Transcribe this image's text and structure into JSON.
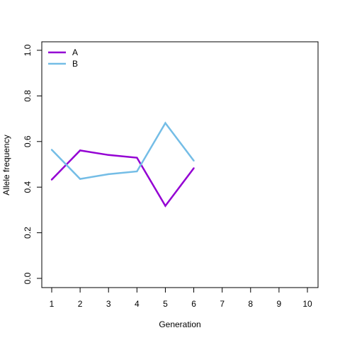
{
  "chart_data": {
    "type": "line",
    "title": "",
    "xlabel": "Generation",
    "ylabel": "Allele frequency",
    "x": [
      1,
      2,
      3,
      4,
      5,
      6
    ],
    "xticks": [
      1,
      2,
      3,
      4,
      5,
      6,
      7,
      8,
      9,
      10
    ],
    "xlim": [
      1,
      10
    ],
    "yticks": [
      0.0,
      0.2,
      0.4,
      0.6,
      0.8,
      1.0
    ],
    "ytick_labels": [
      "0.0",
      "0.2",
      "0.4",
      "0.6",
      "0.8",
      "1.0"
    ],
    "ylim": [
      0,
      1
    ],
    "grid": false,
    "legend": "top-left",
    "series": [
      {
        "name": "A",
        "color": "#9400D3",
        "values": [
          0.433,
          0.561,
          0.541,
          0.529,
          0.318,
          0.483
        ]
      },
      {
        "name": "B",
        "color": "#74BDE6",
        "values": [
          0.564,
          0.436,
          0.457,
          0.469,
          0.681,
          0.516
        ]
      }
    ]
  }
}
